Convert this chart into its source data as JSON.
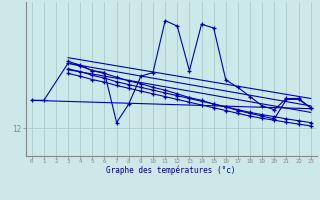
{
  "xlabel": "Graphe des températures (°c)",
  "bg_color": "#cce8e8",
  "grid_color": "#aacccc",
  "line_color": "#0000bb",
  "axis_color": "#888888",
  "xlim": [
    -0.5,
    23.5
  ],
  "ylim": [
    10.5,
    18.8
  ],
  "ytick_val": 12.0,
  "ytick_label": "12",
  "main_x": [
    3,
    4,
    5,
    6,
    7,
    8,
    9,
    10,
    11,
    12,
    13,
    14,
    15,
    16,
    17,
    18,
    19,
    20,
    21,
    22,
    23
  ],
  "main_y": [
    15.6,
    15.4,
    15.1,
    15.0,
    12.3,
    13.3,
    14.8,
    15.0,
    17.8,
    17.5,
    15.1,
    17.6,
    17.4,
    14.6,
    14.2,
    13.7,
    13.2,
    13.0,
    13.6,
    13.6,
    13.1
  ],
  "c1x": [
    0,
    1,
    3,
    4,
    5,
    6,
    7,
    8,
    9,
    10,
    11,
    12,
    13,
    14,
    15,
    16,
    17,
    18,
    19,
    20,
    21,
    22,
    23
  ],
  "c1y": [
    13.5,
    13.5,
    15.5,
    15.35,
    15.1,
    14.95,
    14.75,
    14.55,
    14.4,
    14.2,
    14.05,
    13.85,
    13.65,
    13.5,
    13.3,
    13.15,
    12.95,
    12.8,
    12.65,
    12.5,
    13.55,
    13.55,
    13.1
  ],
  "c2x": [
    3,
    4,
    5,
    6,
    7,
    8,
    9,
    10,
    11,
    12,
    13,
    14,
    15,
    16,
    17,
    18,
    19,
    20,
    21,
    22,
    23
  ],
  "c2y": [
    15.2,
    15.05,
    14.85,
    14.7,
    14.5,
    14.35,
    14.2,
    14.05,
    13.9,
    13.75,
    13.6,
    13.45,
    13.3,
    13.15,
    13.0,
    12.85,
    12.73,
    12.62,
    12.5,
    12.4,
    12.3
  ],
  "c3x": [
    3,
    4,
    5,
    6,
    7,
    8,
    9,
    10,
    11,
    12,
    13,
    14,
    15,
    16,
    17,
    18,
    19,
    20,
    21,
    22,
    23
  ],
  "c3y": [
    14.95,
    14.8,
    14.62,
    14.48,
    14.3,
    14.15,
    14.0,
    13.85,
    13.7,
    13.55,
    13.4,
    13.25,
    13.1,
    12.95,
    12.8,
    12.65,
    12.53,
    12.43,
    12.32,
    12.22,
    12.12
  ],
  "tr1x": [
    3,
    23
  ],
  "tr1y": [
    15.8,
    13.6
  ],
  "tr2x": [
    3,
    23
  ],
  "tr2y": [
    15.5,
    13.2
  ],
  "tr3x": [
    3,
    23
  ],
  "tr3y": [
    15.15,
    12.85
  ],
  "tr4x": [
    0,
    23
  ],
  "tr4y": [
    13.5,
    13.05
  ]
}
